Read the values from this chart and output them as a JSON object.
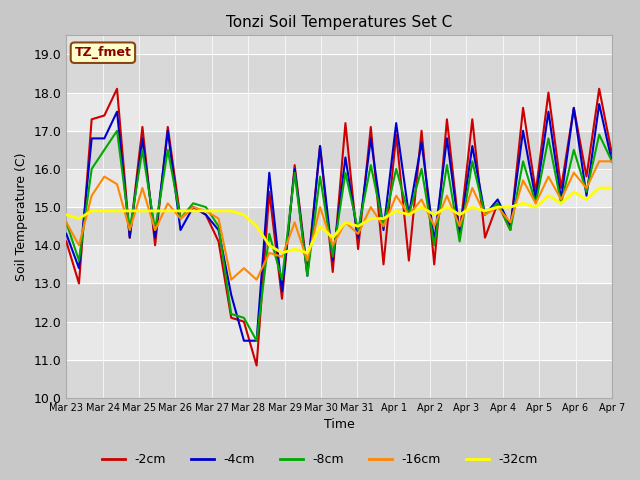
{
  "title": "Tonzi Soil Temperatures Set C",
  "xlabel": "Time",
  "ylabel": "Soil Temperature (C)",
  "ylim": [
    10.0,
    19.5
  ],
  "yticks": [
    10.0,
    11.0,
    12.0,
    13.0,
    14.0,
    15.0,
    16.0,
    17.0,
    18.0,
    19.0
  ],
  "annotation": "TZ_fmet",
  "fig_facecolor": "#c8c8c8",
  "plot_facecolor": "#e0e0e0",
  "series_colors": {
    "-2cm": "#cc0000",
    "-4cm": "#0000cc",
    "-8cm": "#00aa00",
    "-16cm": "#ff8800",
    "-32cm": "#ffff00"
  },
  "x_labels": [
    "Mar 23",
    "Mar 24",
    "Mar 25",
    "Mar 26",
    "Mar 27",
    "Mar 28",
    "Mar 29",
    "Mar 30",
    "Mar 31",
    "Apr 1",
    "Apr 2",
    "Apr 3",
    "Apr 4",
    "Apr 5",
    "Apr 6",
    "Apr 7"
  ],
  "n_ticks": 16,
  "band_colors": [
    "#d8d8d8",
    "#e8e8e8"
  ],
  "data_2cm": [
    14.1,
    13.0,
    17.3,
    17.4,
    18.1,
    14.2,
    17.1,
    14.0,
    17.1,
    14.7,
    15.0,
    14.8,
    14.1,
    12.1,
    12.0,
    10.85,
    15.4,
    12.6,
    16.1,
    13.3,
    16.6,
    13.3,
    17.2,
    13.9,
    17.1,
    13.5,
    16.9,
    13.6,
    17.0,
    13.5,
    17.3,
    14.3,
    17.3,
    14.2,
    15.1,
    14.4,
    17.6,
    15.4,
    18.0,
    15.5,
    17.6,
    15.8,
    18.1,
    16.4
  ],
  "data_4cm": [
    14.3,
    13.4,
    16.8,
    16.8,
    17.5,
    14.2,
    16.8,
    14.2,
    17.0,
    14.4,
    15.0,
    14.8,
    14.4,
    12.7,
    11.5,
    11.5,
    15.9,
    12.8,
    16.0,
    13.2,
    16.6,
    13.6,
    16.3,
    14.2,
    16.8,
    14.4,
    17.2,
    14.8,
    16.7,
    14.1,
    16.8,
    14.3,
    16.6,
    14.8,
    15.2,
    14.5,
    17.0,
    15.2,
    17.5,
    15.2,
    17.6,
    15.3,
    17.7,
    16.2
  ],
  "data_8cm": [
    14.6,
    13.6,
    16.0,
    16.5,
    17.0,
    14.4,
    16.5,
    14.4,
    16.5,
    14.7,
    15.1,
    15.0,
    14.5,
    12.2,
    12.1,
    11.5,
    14.3,
    13.1,
    15.9,
    13.2,
    15.8,
    13.7,
    15.9,
    14.4,
    16.1,
    14.5,
    16.0,
    14.8,
    16.0,
    14.0,
    16.1,
    14.1,
    16.2,
    14.8,
    15.1,
    14.4,
    16.2,
    15.1,
    16.8,
    15.1,
    16.5,
    15.4,
    16.9,
    16.2
  ],
  "data_16cm": [
    14.6,
    14.0,
    15.3,
    15.8,
    15.6,
    14.4,
    15.5,
    14.4,
    15.1,
    14.7,
    15.0,
    14.9,
    14.7,
    13.1,
    13.4,
    13.1,
    13.8,
    13.7,
    14.6,
    13.6,
    15.0,
    14.0,
    14.6,
    14.3,
    15.0,
    14.5,
    15.3,
    14.8,
    15.2,
    14.5,
    15.3,
    14.5,
    15.5,
    14.8,
    15.0,
    14.6,
    15.7,
    15.1,
    15.8,
    15.2,
    15.9,
    15.5,
    16.2,
    16.2
  ],
  "data_32cm": [
    14.8,
    14.7,
    14.9,
    14.9,
    14.9,
    14.9,
    14.9,
    14.9,
    14.9,
    14.9,
    14.9,
    14.9,
    14.9,
    14.9,
    14.8,
    14.5,
    14.0,
    13.8,
    13.9,
    13.8,
    14.5,
    14.2,
    14.6,
    14.5,
    14.7,
    14.7,
    14.9,
    14.8,
    15.0,
    14.8,
    15.0,
    14.8,
    15.0,
    14.9,
    15.0,
    15.0,
    15.1,
    15.0,
    15.3,
    15.1,
    15.4,
    15.2,
    15.5,
    15.5
  ]
}
